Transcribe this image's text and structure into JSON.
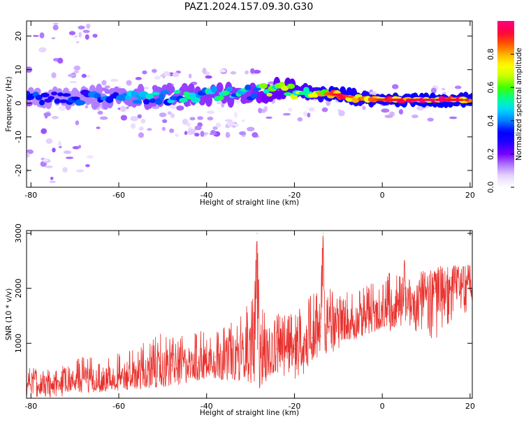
{
  "chart_data": [
    {
      "type": "heatmap",
      "title": "PAZ1.2024.157.09.30.G30",
      "xlabel": "Height of straight line (km)",
      "ylabel": "Frequency (Hz)",
      "xlim": [
        -81,
        20.5
      ],
      "ylim": [
        -25,
        24.5
      ],
      "xticks": [
        -80,
        -60,
        -40,
        -20,
        0,
        20
      ],
      "yticks": [
        -20,
        -10,
        0,
        10,
        20
      ],
      "colorbar": {
        "label": "Normalized spectral amplitude",
        "range": [
          0,
          1
        ],
        "ticks": [
          0.0,
          0.2,
          0.4,
          0.6,
          0.8
        ],
        "colormap": [
          "#ffffff",
          "#e8d8ff",
          "#b07cff",
          "#7a00ff",
          "#2200ff",
          "#0000ff",
          "#0080ff",
          "#00d8ff",
          "#00ff90",
          "#40ff00",
          "#c8ff00",
          "#ffff00",
          "#ffb000",
          "#ff5000",
          "#ff0040",
          "#ff0080"
        ]
      },
      "ridge": {
        "x": [
          -80,
          -70,
          -60,
          -50,
          -40,
          -30,
          -25,
          -20,
          -15,
          -10,
          -5,
          0,
          5,
          10,
          15,
          20
        ],
        "frequency": [
          1.5,
          1.5,
          2.0,
          2.0,
          2.5,
          3.0,
          4.0,
          3.5,
          3.0,
          2.5,
          1.5,
          1.0,
          1.0,
          1.0,
          1.0,
          1.0
        ],
        "amplitude": [
          0.35,
          0.35,
          0.4,
          0.45,
          0.5,
          0.5,
          0.6,
          0.65,
          0.7,
          0.9,
          0.75,
          0.85,
          0.9,
          0.95,
          0.9,
          0.85
        ]
      }
    },
    {
      "type": "line",
      "xlabel": "Height of straight line (km)",
      "ylabel": "SNR (10 * v/v)",
      "xlim": [
        -81,
        20.5
      ],
      "ylim": [
        0,
        3050
      ],
      "xticks": [
        -80,
        -60,
        -40,
        -20,
        0,
        20
      ],
      "yticks": [
        1000,
        2000,
        3000
      ],
      "color": "#e8322e",
      "series": [
        {
          "x": [
            -81,
            -78,
            -75,
            -72,
            -70,
            -68,
            -65,
            -62,
            -60,
            -58,
            -55,
            -52,
            -50,
            -48,
            -45,
            -42,
            -40,
            -38,
            -35,
            -32,
            -30,
            -29,
            -28.5,
            -28,
            -26,
            -24,
            -22,
            -20,
            -18,
            -16,
            -14,
            -13.5,
            -13,
            -12,
            -10,
            -8,
            -6,
            -4,
            -2,
            0,
            2,
            4,
            5,
            6,
            8,
            10,
            12,
            14,
            16,
            18,
            20,
            20.5
          ],
          "y": [
            300,
            250,
            250,
            300,
            320,
            350,
            350,
            380,
            400,
            420,
            450,
            500,
            550,
            600,
            650,
            650,
            700,
            750,
            780,
            800,
            900,
            1200,
            3000,
            1000,
            850,
            900,
            950,
            900,
            1000,
            1100,
            1300,
            3000,
            1200,
            1300,
            1400,
            1350,
            1400,
            1450,
            1500,
            1500,
            1600,
            1700,
            2000,
            1700,
            1800,
            1900,
            2000,
            1950,
            2050,
            2100,
            2200,
            2000
          ],
          "envelope_upper": [
            700,
            500,
            550,
            600,
            700,
            800,
            700,
            750,
            850,
            900,
            1000,
            1100,
            1350,
            1100,
            1200,
            1250,
            1200,
            1250,
            1350,
            1500,
            1900,
            2200,
            3000,
            1800,
            1600,
            1600,
            1500,
            1600,
            1700,
            2000,
            2200,
            3000,
            2000,
            2050,
            1900,
            1950,
            2000,
            2050,
            2200,
            2150,
            2400,
            2300,
            2550,
            2200,
            2400,
            2300,
            2350,
            2450,
            2500,
            2400,
            2450,
            2300
          ],
          "envelope_lower": [
            0,
            0,
            0,
            0,
            50,
            80,
            100,
            100,
            120,
            150,
            150,
            180,
            200,
            220,
            250,
            300,
            320,
            350,
            300,
            250,
            200,
            150,
            200,
            150,
            300,
            350,
            400,
            350,
            400,
            600,
            750,
            800,
            700,
            800,
            900,
            1000,
            1000,
            1150,
            1200,
            1300,
            1200,
            1300,
            1350,
            1300,
            1200,
            1150,
            1000,
            1300,
            1400,
            1500,
            1600,
            1500
          ]
        }
      ]
    }
  ]
}
